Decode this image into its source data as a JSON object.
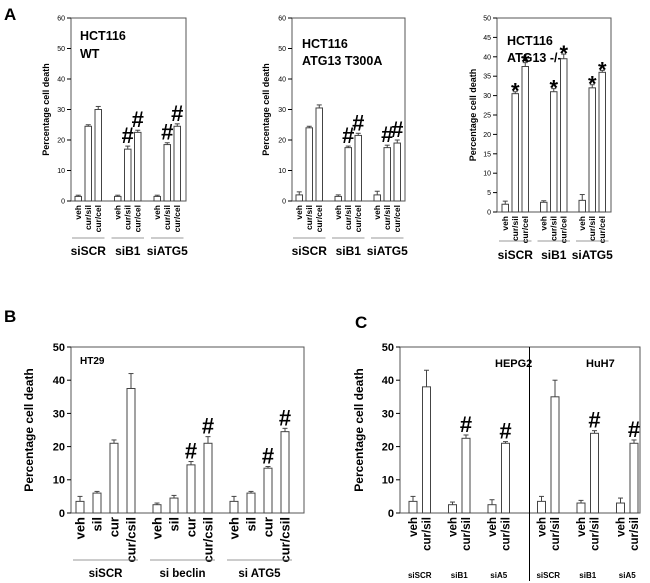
{
  "panel_labels": {
    "a": "A",
    "b": "B",
    "c": "C"
  },
  "chart_data": [
    {
      "type": "bar",
      "ylabel": "Percentage cell death",
      "ylim": [
        0,
        60
      ],
      "yticks": [
        0,
        10,
        20,
        30,
        40,
        50,
        60
      ],
      "tick_labels": [
        "0",
        "10",
        "20",
        "30",
        "40",
        "50",
        "60"
      ],
      "annotations": [
        "HCT116",
        "WT"
      ],
      "groups": [
        {
          "name": "siSCR",
          "categories": [
            "veh",
            "cur/sil",
            "cur/cel"
          ],
          "values": [
            1.5,
            24.5,
            30
          ],
          "errors": [
            0.4,
            0.5,
            1.0
          ],
          "marks": [
            "",
            "",
            ""
          ]
        },
        {
          "name": "siB1",
          "categories": [
            "veh",
            "cur/sil",
            "cur/cel"
          ],
          "values": [
            1.5,
            17,
            22.5
          ],
          "errors": [
            0.4,
            1.0,
            0.7
          ],
          "marks": [
            "",
            "#",
            "#"
          ]
        },
        {
          "name": "siATG5",
          "categories": [
            "veh",
            "cur/sil",
            "cur/cel"
          ],
          "values": [
            1.5,
            18.5,
            24.5
          ],
          "errors": [
            0.4,
            0.6,
            0.8
          ],
          "marks": [
            "",
            "#",
            "#"
          ]
        }
      ]
    },
    {
      "type": "bar",
      "ylabel": "Percentage cell death",
      "ylim": [
        0,
        60
      ],
      "yticks": [
        0,
        10,
        20,
        30,
        40,
        50,
        60
      ],
      "tick_labels": [
        "0",
        "10",
        "20",
        "30",
        "40",
        "50",
        "60"
      ],
      "annotations": [
        "HCT116",
        "ATG13 T300A"
      ],
      "groups": [
        {
          "name": "siSCR",
          "categories": [
            "veh",
            "cur/sil",
            "cur/cel"
          ],
          "values": [
            2,
            24,
            30.5
          ],
          "errors": [
            1.0,
            0.5,
            1.0
          ],
          "marks": [
            "",
            "",
            ""
          ]
        },
        {
          "name": "siB1",
          "categories": [
            "veh",
            "cur/sil",
            "cur/cel"
          ],
          "values": [
            1.5,
            17.5,
            21.5
          ],
          "errors": [
            0.5,
            0.5,
            0.7
          ],
          "marks": [
            "",
            "#",
            "#"
          ]
        },
        {
          "name": "siATG5",
          "categories": [
            "veh",
            "cur/sil",
            "cur/cel"
          ],
          "values": [
            2,
            17.5,
            19
          ],
          "errors": [
            1.2,
            0.8,
            1.0
          ],
          "marks": [
            "",
            "#",
            "#"
          ]
        }
      ]
    },
    {
      "type": "bar",
      "ylabel": "Percentage cell death",
      "ylim": [
        0,
        50
      ],
      "yticks": [
        0,
        5,
        10,
        15,
        20,
        25,
        30,
        35,
        40,
        45,
        50
      ],
      "tick_labels": [
        "0",
        "5",
        "10",
        "15",
        "20",
        "25",
        "30",
        "35",
        "40",
        "45",
        "50"
      ],
      "annotations": [
        "HCT116",
        "ATG13 -/-"
      ],
      "groups": [
        {
          "name": "siSCR",
          "categories": [
            "veh",
            "cur/sil",
            "cur/cel"
          ],
          "values": [
            2,
            30.5,
            37.5
          ],
          "errors": [
            0.8,
            0.5,
            1.0
          ],
          "marks": [
            "",
            "*",
            "*"
          ]
        },
        {
          "name": "siB1",
          "categories": [
            "veh",
            "cur/sil",
            "cur/cel"
          ],
          "values": [
            2.5,
            31,
            39.5
          ],
          "errors": [
            0.4,
            0.8,
            1.2
          ],
          "marks": [
            "",
            "*",
            "*"
          ]
        },
        {
          "name": "siATG5",
          "categories": [
            "veh",
            "cur/sil",
            "cur/cel"
          ],
          "values": [
            3,
            32,
            36
          ],
          "errors": [
            1.5,
            0.8,
            0.5
          ],
          "marks": [
            "",
            "*",
            "*"
          ]
        }
      ]
    },
    {
      "type": "bar",
      "ylabel": "Percentage cell death",
      "ylim": [
        0,
        50
      ],
      "yticks": [
        0,
        10,
        20,
        30,
        40,
        50
      ],
      "tick_labels": [
        "0",
        "10",
        "20",
        "30",
        "40",
        "50"
      ],
      "annotations": [
        "HT29"
      ],
      "groups": [
        {
          "name": "siSCR",
          "categories": [
            "veh",
            "sil",
            "cur",
            "cur/csil"
          ],
          "values": [
            3.5,
            6,
            21,
            37.5
          ],
          "errors": [
            1.5,
            0.5,
            1.0,
            4.5
          ],
          "marks": [
            "",
            "",
            "",
            ""
          ]
        },
        {
          "name": "si beclin",
          "categories": [
            "veh",
            "sil",
            "cur",
            "cur/csil"
          ],
          "values": [
            2.5,
            4.5,
            14.5,
            21
          ],
          "errors": [
            0.5,
            0.8,
            1.0,
            2.0
          ],
          "marks": [
            "",
            "",
            "#",
            "#"
          ]
        },
        {
          "name": "si ATG5",
          "categories": [
            "veh",
            "sil",
            "cur",
            "cur/csil"
          ],
          "values": [
            3.5,
            6,
            13.5,
            24.5
          ],
          "errors": [
            1.5,
            0.5,
            0.5,
            1.0
          ],
          "marks": [
            "",
            "",
            "#",
            "#"
          ]
        }
      ]
    },
    {
      "type": "bar",
      "ylabel": "Percentage cell death",
      "ylim": [
        0,
        50
      ],
      "yticks": [
        0,
        10,
        20,
        30,
        40,
        50
      ],
      "tick_labels": [
        "0",
        "10",
        "20",
        "30",
        "40",
        "50"
      ],
      "annotations": [
        "HEPG2",
        "HuH7"
      ],
      "groups": [
        {
          "name": "siSCR",
          "categories": [
            "veh",
            "cur/sil"
          ],
          "values": [
            3.5,
            38
          ],
          "errors": [
            1.5,
            5.0
          ],
          "marks": [
            "",
            ""
          ]
        },
        {
          "name": "siB1",
          "categories": [
            "veh",
            "cur/sil"
          ],
          "values": [
            2.5,
            22.5
          ],
          "errors": [
            0.8,
            1.0
          ],
          "marks": [
            "",
            "#"
          ]
        },
        {
          "name": "siA5",
          "categories": [
            "veh",
            "cur/sil"
          ],
          "values": [
            2.5,
            21
          ],
          "errors": [
            1.5,
            0.5
          ],
          "marks": [
            "",
            "#"
          ]
        },
        {
          "name": "siSCR",
          "categories": [
            "veh",
            "cur/sil"
          ],
          "values": [
            3.5,
            35
          ],
          "errors": [
            1.5,
            5.0
          ],
          "marks": [
            "",
            ""
          ]
        },
        {
          "name": "siB1",
          "categories": [
            "veh",
            "cur/sil"
          ],
          "values": [
            3,
            24
          ],
          "errors": [
            0.8,
            0.8
          ],
          "marks": [
            "",
            "#"
          ]
        },
        {
          "name": "siA5",
          "categories": [
            "veh",
            "cur/sil"
          ],
          "values": [
            3,
            21
          ],
          "errors": [
            1.5,
            1.0
          ],
          "marks": [
            "",
            "#"
          ]
        }
      ]
    }
  ]
}
